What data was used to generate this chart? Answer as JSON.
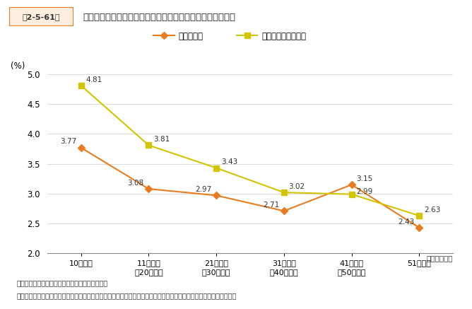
{
  "title_box": "第2-5-61図",
  "title_main": "設立年数、金融機関からの借入状況別にみた投資比率の割合",
  "categories": [
    "10年以下",
    "11年以上\n〜20年以下",
    "21年以上\n〜30年以下",
    "31年以上\n〜40年以下",
    "41年以上\n〜50年以下",
    "51年以上"
  ],
  "series": [
    {
      "label": "無借金企業",
      "values": [
        3.77,
        3.08,
        2.97,
        2.71,
        3.15,
        2.43
      ],
      "color": "#E87C1E",
      "marker": "D",
      "markersize": 5.5
    },
    {
      "label": "借入のある企業全体",
      "values": [
        4.81,
        3.81,
        3.43,
        3.02,
        2.99,
        2.63
      ],
      "color": "#D4C400",
      "marker": "s",
      "markersize": 5.5
    }
  ],
  "ylabel": "(%)",
  "xlabel_note": "（設立年数）",
  "ylim": [
    2.0,
    5.0
  ],
  "yticks": [
    2.0,
    2.5,
    3.0,
    3.5,
    4.0,
    4.5,
    5.0
  ],
  "footnote1": "資料：経済産業省「企業活動基本調査」再編加工",
  "footnote2": "（注）　ここでいう投資比率とは、総資産に占める設備投資額（有形固定資産と無形固定資産の合計）の割合を指す。",
  "bg_color": "#ffffff",
  "title_box_color": "#E87C1E",
  "title_box_bg": "#F5E6D3"
}
